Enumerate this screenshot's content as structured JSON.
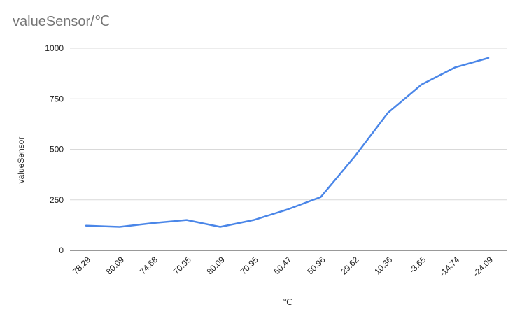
{
  "chart_data": {
    "type": "line",
    "title": "valueSensor/℃",
    "xlabel": "℃",
    "ylabel": "valueSensor",
    "categories": [
      "78.29",
      "80.09",
      "74.68",
      "70.95",
      "80.09",
      "70.95",
      "60.47",
      "50.96",
      "29.62",
      "10.36",
      "-3.65",
      "-14.74",
      "-24.09"
    ],
    "series": [
      {
        "values": [
          122,
          116,
          135,
          150,
          116,
          150,
          202,
          264,
          462,
          680,
          820,
          905,
          952
        ],
        "color": "#4a86e8"
      }
    ],
    "ylim": [
      0,
      1000
    ],
    "yticks": [
      0,
      250,
      500,
      750,
      1000
    ],
    "grid": true,
    "legend": "none"
  }
}
